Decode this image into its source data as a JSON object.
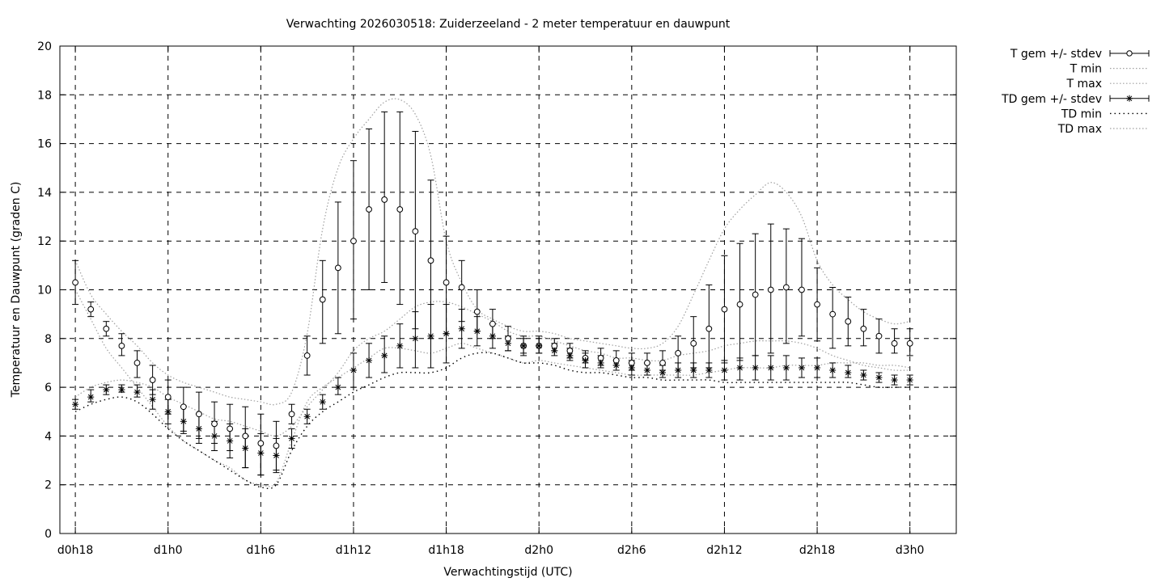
{
  "chart_data": {
    "type": "line",
    "title": "Verwachting 2026030518: Zuiderzeeland - 2 meter temperatuur en dauwpunt",
    "xlabel": "Verwachtingstijd (UTC)",
    "ylabel": "Temperatuur en Dauwpunt (graden C)",
    "ylim": [
      0,
      20
    ],
    "yticks": [
      "0",
      "2",
      "4",
      "6",
      "8",
      "10",
      "12",
      "14",
      "16",
      "18",
      "20"
    ],
    "xlim_hours": [
      -1,
      57
    ],
    "xtick_hours": [
      0,
      6,
      12,
      18,
      24,
      30,
      36,
      42,
      48,
      54
    ],
    "xticks": [
      "d0h18",
      "d1h0",
      "d1h6",
      "d1h12",
      "d1h18",
      "d2h0",
      "d2h6",
      "d2h12",
      "d2h18",
      "d3h0"
    ],
    "grid": true,
    "legend_position": "right-outside-top",
    "x": [
      0,
      1,
      2,
      3,
      4,
      5,
      6,
      7,
      8,
      9,
      10,
      11,
      12,
      13,
      14,
      15,
      16,
      17,
      18,
      19,
      20,
      21,
      22,
      23,
      24,
      25,
      26,
      27,
      28,
      29,
      30,
      31,
      32,
      33,
      34,
      35,
      36,
      37,
      38,
      39,
      40,
      41,
      42,
      43,
      44,
      45,
      46,
      47,
      48,
      49,
      50,
      51,
      52,
      53,
      54
    ],
    "series": [
      {
        "name": "T gem +/- stdev",
        "marker": "circle",
        "values": [
          10.3,
          9.2,
          8.4,
          7.7,
          7.0,
          6.3,
          5.6,
          5.2,
          4.9,
          4.5,
          4.3,
          4.0,
          3.7,
          3.6,
          4.9,
          7.3,
          9.6,
          10.9,
          12.0,
          13.3,
          13.7,
          13.3,
          12.4,
          11.2,
          10.3,
          10.1,
          9.1,
          8.6,
          8.0,
          7.7,
          7.7,
          7.7,
          7.5,
          7.2,
          7.2,
          7.1,
          7.0,
          7.0,
          7.0,
          7.4,
          7.8,
          8.4,
          9.2,
          9.4,
          9.8,
          10.0,
          10.1,
          10.0,
          9.4,
          9.0,
          8.7,
          8.4,
          8.1,
          7.8,
          7.8
        ],
        "stdev_low": [
          9.4,
          8.9,
          8.1,
          7.3,
          6.4,
          5.7,
          4.9,
          4.2,
          3.9,
          3.7,
          3.4,
          2.7,
          2.4,
          2.6,
          4.5,
          6.5,
          7.8,
          8.2,
          8.8,
          10.0,
          10.3,
          9.4,
          8.4,
          8.0,
          8.2,
          8.7,
          8.3,
          8.0,
          7.5,
          7.3,
          7.4,
          7.5,
          7.2,
          7.0,
          6.9,
          6.9,
          6.7,
          6.7,
          6.7,
          6.7,
          6.8,
          6.8,
          7.0,
          7.1,
          7.3,
          7.4,
          7.8,
          8.1,
          7.9,
          7.6,
          7.7,
          7.7,
          7.4,
          7.4,
          7.3
        ],
        "stdev_high": [
          11.2,
          9.5,
          8.7,
          8.2,
          7.5,
          6.9,
          6.3,
          6.0,
          5.8,
          5.4,
          5.3,
          5.2,
          4.9,
          4.6,
          5.3,
          8.1,
          11.2,
          13.6,
          15.3,
          16.6,
          17.3,
          17.3,
          16.5,
          14.5,
          12.2,
          11.2,
          10.0,
          9.2,
          8.5,
          8.1,
          8.1,
          8.0,
          7.8,
          7.5,
          7.6,
          7.5,
          7.4,
          7.4,
          7.5,
          8.1,
          8.9,
          10.2,
          11.4,
          11.9,
          12.3,
          12.7,
          12.5,
          12.1,
          10.9,
          10.1,
          9.7,
          9.2,
          8.8,
          8.4,
          8.4
        ]
      },
      {
        "name": "T min",
        "values": [
          10.0,
          8.8,
          7.6,
          6.8,
          6.0,
          5.2,
          4.4,
          3.8,
          3.4,
          3.0,
          2.7,
          2.2,
          2.0,
          2.1,
          3.8,
          5.4,
          6.0,
          6.4,
          6.8,
          7.2,
          7.6,
          7.6,
          7.5,
          7.4,
          7.6,
          7.8,
          7.6,
          7.4,
          7.2,
          7.0,
          7.1,
          7.0,
          6.9,
          6.8,
          6.7,
          6.6,
          6.5,
          6.5,
          6.5,
          6.5,
          6.5,
          6.6,
          6.7,
          6.8,
          6.8,
          6.8,
          6.9,
          6.9,
          6.9,
          7.0,
          7.0,
          7.0,
          6.9,
          6.9,
          6.8
        ]
      },
      {
        "name": "T max",
        "values": [
          11.2,
          9.8,
          9.0,
          8.3,
          7.7,
          7.0,
          6.5,
          6.2,
          6.0,
          5.8,
          5.6,
          5.5,
          5.4,
          5.3,
          5.8,
          8.2,
          12.5,
          15.0,
          16.2,
          17.0,
          17.7,
          17.8,
          17.2,
          15.5,
          12.0,
          10.3,
          9.2,
          8.8,
          8.5,
          8.3,
          8.3,
          8.2,
          8.0,
          7.9,
          7.8,
          7.7,
          7.6,
          7.6,
          7.8,
          8.5,
          9.8,
          11.2,
          12.5,
          13.3,
          13.9,
          14.4,
          14.0,
          13.0,
          11.2,
          10.2,
          9.6,
          9.1,
          8.8,
          8.6,
          8.7
        ]
      },
      {
        "name": "TD gem +/- stdev",
        "marker": "star",
        "values": [
          5.3,
          5.6,
          5.9,
          5.9,
          5.8,
          5.5,
          5.0,
          4.6,
          4.3,
          4.0,
          3.8,
          3.5,
          3.3,
          3.2,
          3.9,
          4.8,
          5.4,
          6.0,
          6.7,
          7.1,
          7.3,
          7.7,
          8.0,
          8.1,
          8.2,
          8.4,
          8.3,
          8.1,
          7.8,
          7.7,
          7.7,
          7.5,
          7.3,
          7.1,
          7.0,
          6.9,
          6.8,
          6.7,
          6.6,
          6.7,
          6.7,
          6.7,
          6.7,
          6.8,
          6.8,
          6.8,
          6.8,
          6.8,
          6.8,
          6.7,
          6.6,
          6.5,
          6.4,
          6.3,
          6.3
        ],
        "stdev_low": [
          5.1,
          5.4,
          5.7,
          5.8,
          5.6,
          5.1,
          4.5,
          4.1,
          3.7,
          3.4,
          3.1,
          2.7,
          2.4,
          2.5,
          3.5,
          4.5,
          5.1,
          5.7,
          6.0,
          6.4,
          6.6,
          6.8,
          6.8,
          6.8,
          7.0,
          7.6,
          7.7,
          7.6,
          7.5,
          7.4,
          7.4,
          7.3,
          7.1,
          6.8,
          6.8,
          6.7,
          6.5,
          6.5,
          6.4,
          6.4,
          6.4,
          6.4,
          6.3,
          6.3,
          6.3,
          6.3,
          6.3,
          6.4,
          6.4,
          6.4,
          6.4,
          6.3,
          6.2,
          6.1,
          6.1
        ],
        "stdev_high": [
          5.5,
          5.9,
          6.1,
          6.1,
          6.1,
          5.9,
          5.5,
          5.2,
          4.9,
          4.6,
          4.5,
          4.3,
          4.1,
          3.9,
          4.3,
          5.1,
          5.7,
          6.4,
          7.4,
          7.8,
          8.1,
          8.6,
          9.1,
          9.4,
          9.4,
          9.2,
          8.9,
          8.6,
          8.1,
          8.0,
          8.0,
          7.8,
          7.6,
          7.4,
          7.3,
          7.1,
          7.1,
          7.0,
          6.9,
          7.0,
          7.0,
          7.0,
          7.1,
          7.2,
          7.3,
          7.3,
          7.3,
          7.2,
          7.2,
          7.0,
          6.9,
          6.7,
          6.6,
          6.5,
          6.5
        ]
      },
      {
        "name": "TD min",
        "values": [
          5.0,
          5.3,
          5.5,
          5.6,
          5.4,
          4.9,
          4.3,
          3.8,
          3.4,
          3.0,
          2.6,
          2.2,
          1.9,
          2.0,
          3.4,
          4.4,
          5.0,
          5.4,
          5.8,
          6.1,
          6.4,
          6.6,
          6.6,
          6.6,
          6.8,
          7.2,
          7.4,
          7.4,
          7.2,
          7.0,
          7.0,
          6.9,
          6.7,
          6.6,
          6.6,
          6.5,
          6.4,
          6.4,
          6.3,
          6.3,
          6.3,
          6.3,
          6.2,
          6.2,
          6.2,
          6.2,
          6.2,
          6.2,
          6.2,
          6.2,
          6.2,
          6.1,
          6.0,
          6.0,
          6.0
        ]
      },
      {
        "name": "TD max",
        "values": [
          5.6,
          6.0,
          6.2,
          6.3,
          6.2,
          6.0,
          5.6,
          5.3,
          5.0,
          4.7,
          4.6,
          4.4,
          4.2,
          4.0,
          4.4,
          5.2,
          5.9,
          6.6,
          7.5,
          8.0,
          8.3,
          8.8,
          9.3,
          9.5,
          9.5,
          9.3,
          9.0,
          8.7,
          8.3,
          8.1,
          8.1,
          7.9,
          7.7,
          7.5,
          7.4,
          7.2,
          7.2,
          7.1,
          7.1,
          7.3,
          7.4,
          7.5,
          7.7,
          7.8,
          7.9,
          7.9,
          7.9,
          7.8,
          7.6,
          7.3,
          7.1,
          6.9,
          6.8,
          6.7,
          6.7
        ]
      }
    ]
  }
}
